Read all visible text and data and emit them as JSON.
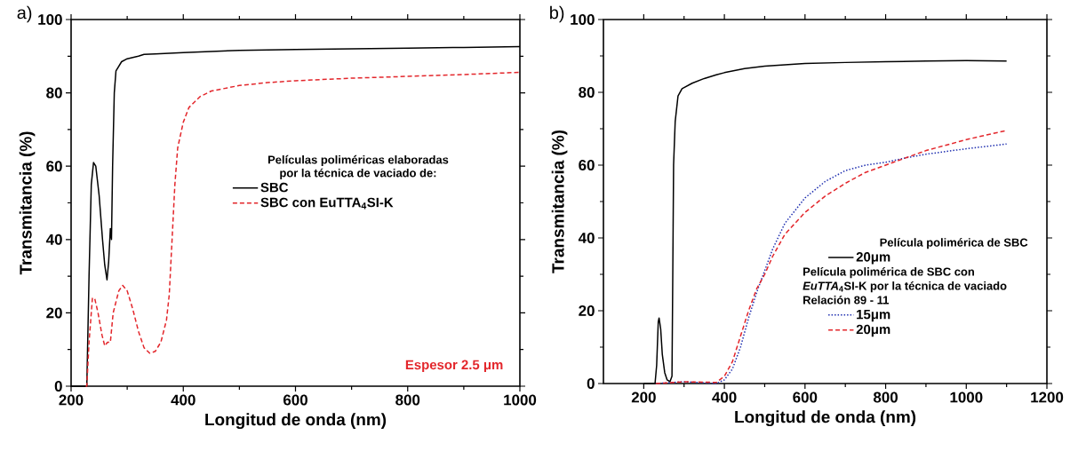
{
  "chart_data": [
    {
      "type": "line",
      "title": "a)",
      "xlabel": "Longitud de onda (nm)",
      "ylabel": "Transmitancia (%)",
      "xlim": [
        200,
        1000
      ],
      "ylim": [
        0,
        100
      ],
      "xticks": [
        200,
        400,
        600,
        800,
        1000
      ],
      "yticks": [
        0,
        20,
        40,
        60,
        80,
        100
      ],
      "grid": false,
      "legend": "right",
      "legend_title": "Películas poliméricas elaboradas por la técnica de vaciado de:",
      "series": [
        {
          "name": "SBC",
          "color": "#000000",
          "line_style": "solid",
          "x": [
            200,
            228,
            232,
            236,
            240,
            244,
            250,
            256,
            260,
            264,
            267,
            270,
            272,
            274,
            277,
            280,
            290,
            300,
            320,
            330,
            350,
            400,
            500,
            600,
            700,
            800,
            900,
            1000
          ],
          "values": [
            0,
            0,
            30,
            55,
            61,
            60,
            52,
            40,
            33,
            29,
            34,
            43,
            40,
            60,
            80,
            86,
            88.5,
            89.3,
            90,
            90.5,
            90.6,
            91,
            91.6,
            91.8,
            92,
            92.2,
            92.4,
            92.6
          ]
        },
        {
          "name": "SBC con EuTTA$_{4}$SI-K",
          "color": "#e3262b",
          "line_style": "dashed",
          "x": [
            226,
            228,
            232,
            238,
            242,
            248,
            255,
            260,
            265,
            270,
            275,
            285,
            292,
            300,
            310,
            320,
            330,
            340,
            350,
            360,
            370,
            375,
            380,
            385,
            390,
            400,
            410,
            430,
            450,
            500,
            550,
            600,
            700,
            800,
            900,
            1000
          ],
          "values": [
            0,
            0,
            12,
            24,
            24,
            20,
            14,
            11,
            12,
            12,
            20,
            26,
            27.5,
            26,
            21,
            15,
            10.5,
            9,
            9.5,
            12,
            18,
            25,
            40,
            55,
            65,
            72,
            76,
            79,
            80.5,
            82,
            82.8,
            83.3,
            84,
            84.5,
            85,
            85.6
          ]
        }
      ],
      "annotations": [
        "Espesor 2.5 μm"
      ]
    },
    {
      "type": "line",
      "title": "b)",
      "xlabel": "Longitud de onda (nm)",
      "ylabel": "Transmitancia (%)",
      "xlim": [
        100,
        1200
      ],
      "ylim": [
        0,
        100
      ],
      "xticks": [
        200,
        400,
        600,
        800,
        1000,
        1200
      ],
      "yticks": [
        0,
        20,
        40,
        60,
        80,
        100
      ],
      "grid": false,
      "legend": "bottom right",
      "legend_title": "Película polimérica de SBC",
      "series": [
        {
          "name": "20μm",
          "color": "#000000",
          "line_style": "solid",
          "x": [
            200,
            228,
            232,
            236,
            238,
            242,
            246,
            252,
            258,
            265,
            270,
            272,
            274,
            278,
            285,
            295,
            320,
            350,
            380,
            400,
            450,
            500,
            600,
            700,
            800,
            900,
            1000,
            1100
          ],
          "values": [
            0,
            0,
            5,
            17,
            18,
            15,
            8,
            3,
            1,
            0.5,
            2,
            30,
            60,
            72,
            79,
            81,
            82.5,
            83.8,
            84.8,
            85.4,
            86.5,
            87.2,
            87.9,
            88.2,
            88.4,
            88.6,
            88.7,
            88.6
          ]
        },
        {
          "name": "15μm",
          "color": "#1f2fb0",
          "line_style": "dotted",
          "x": [
            230,
            300,
            380,
            400,
            420,
            440,
            460,
            480,
            500,
            520,
            550,
            600,
            650,
            700,
            750,
            800,
            850,
            900,
            1000,
            1100
          ],
          "values": [
            0,
            0.5,
            0,
            1,
            4,
            10,
            18,
            25,
            31,
            37,
            44,
            51,
            55.5,
            58.5,
            60,
            60.8,
            62,
            63,
            64.5,
            65.8
          ]
        },
        {
          "name": "20μm",
          "color": "#e3262b",
          "line_style": "dashed",
          "x": [
            230,
            300,
            380,
            400,
            420,
            440,
            460,
            480,
            500,
            520,
            550,
            600,
            650,
            700,
            750,
            800,
            850,
            900,
            950,
            1000,
            1050,
            1100
          ],
          "values": [
            0,
            0.5,
            0.3,
            2,
            6,
            13,
            20,
            26,
            30,
            35,
            41,
            47,
            51.5,
            55,
            58,
            60,
            62,
            64,
            65.5,
            67,
            68.3,
            69.5
          ]
        }
      ],
      "annotations": [
        "Película  polimérica de SBC con",
        "*EuTTA*$_{4}$SI-K por la técnica de vaciado",
        "Relación 89 - 11"
      ]
    }
  ]
}
